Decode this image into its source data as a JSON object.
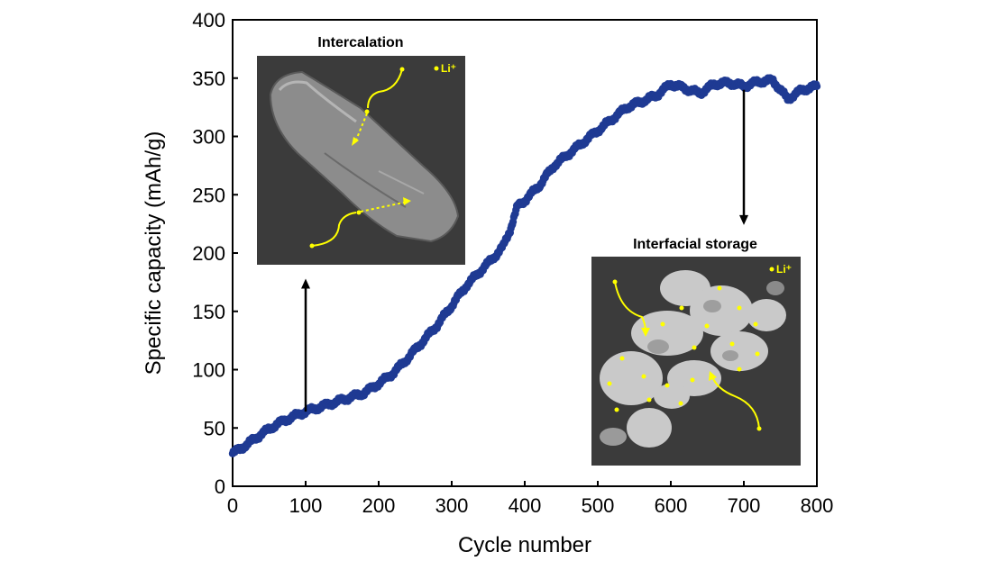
{
  "chart_data": {
    "type": "scatter",
    "xlabel": "Cycle number",
    "ylabel": "Specific capacity (mAh/g)",
    "xlim": [
      0,
      800
    ],
    "ylim": [
      0,
      400
    ],
    "xticks": [
      "0",
      "100",
      "200",
      "300",
      "400",
      "500",
      "600",
      "700",
      "800"
    ],
    "yticks": [
      "0",
      "50",
      "100",
      "150",
      "200",
      "250",
      "300",
      "350",
      "400"
    ],
    "grid": false,
    "marker_color": "#1f3a93",
    "series": [
      {
        "x": [
          0,
          20,
          40,
          60,
          80,
          100,
          120,
          140,
          160,
          180,
          200,
          220,
          240,
          260,
          280,
          300,
          320,
          340,
          360,
          370,
          380,
          390,
          400,
          420,
          440,
          460,
          480,
          500,
          520,
          540,
          560,
          580,
          600,
          620,
          640,
          660,
          680,
          700,
          720,
          740,
          760,
          780,
          800
        ],
        "y": [
          28,
          36,
          45,
          53,
          59,
          64,
          68,
          72,
          76,
          80,
          88,
          97,
          110,
          124,
          138,
          155,
          172,
          185,
          198,
          205,
          220,
          240,
          245,
          258,
          275,
          285,
          295,
          305,
          315,
          325,
          330,
          335,
          345,
          341,
          337,
          345,
          346,
          343,
          347,
          348,
          332,
          340,
          343
        ]
      }
    ],
    "annotations": [
      {
        "text": "Intercalation",
        "arrow_x": 100,
        "arrow_from_y": 64,
        "arrow_to_y": 178
      },
      {
        "text": "Interfacial storage",
        "arrow_x": 700,
        "arrow_from_y": 340,
        "arrow_to_y": 224
      }
    ],
    "legend_li": "Li⁺"
  }
}
